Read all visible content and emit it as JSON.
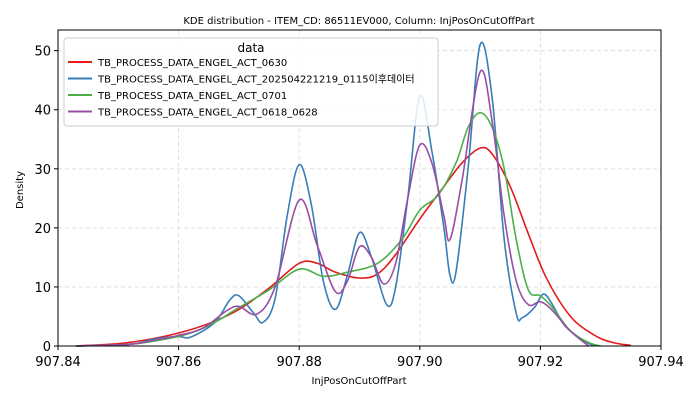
{
  "chart_data": {
    "type": "line",
    "title": "KDE distribution - ITEM_CD: 86511EV000, Column: InjPosOnCutOffPart",
    "xlabel": "InjPosOnCutOffPart",
    "ylabel": "Density",
    "xlim": [
      907.84,
      907.94
    ],
    "ylim": [
      0,
      53.5
    ],
    "x_ticks": [
      907.84,
      907.86,
      907.88,
      907.9,
      907.92,
      907.94
    ],
    "x_tick_labels": [
      "907.84",
      "907.86",
      "907.88",
      "907.90",
      "907.92",
      "907.94"
    ],
    "y_ticks": [
      0,
      10,
      20,
      30,
      40,
      50
    ],
    "y_tick_labels": [
      "0",
      "10",
      "20",
      "30",
      "40",
      "50"
    ],
    "grid": true,
    "legend": {
      "title": "data",
      "placement": "top-left"
    },
    "series": [
      {
        "name": "TB_PROCESS_DATA_ENGEL_ACT_0630",
        "color": "#e41a1c",
        "points": [
          [
            907.843,
            0.0
          ],
          [
            907.85,
            0.4
          ],
          [
            907.855,
            1.1
          ],
          [
            907.86,
            2.2
          ],
          [
            907.865,
            3.8
          ],
          [
            907.87,
            6.2
          ],
          [
            907.875,
            9.8
          ],
          [
            907.88,
            14.0
          ],
          [
            907.883,
            14.0
          ],
          [
            907.886,
            12.5
          ],
          [
            907.89,
            11.5
          ],
          [
            907.893,
            12.2
          ],
          [
            907.896,
            15.5
          ],
          [
            907.9,
            21.5
          ],
          [
            907.904,
            27.0
          ],
          [
            907.907,
            31.0
          ],
          [
            907.91,
            33.5
          ],
          [
            907.912,
            32.5
          ],
          [
            907.915,
            27.0
          ],
          [
            907.918,
            19.0
          ],
          [
            907.921,
            11.5
          ],
          [
            907.925,
            5.0
          ],
          [
            907.929,
            1.8
          ],
          [
            907.932,
            0.6
          ],
          [
            907.935,
            0.1
          ]
        ]
      },
      {
        "name": "TB_PROCESS_DATA_ENGEL_ACT_202504221219_0115이후데이터",
        "color": "#377eb8",
        "points": [
          [
            907.843,
            0.0
          ],
          [
            907.852,
            0.3
          ],
          [
            907.856,
            1.2
          ],
          [
            907.86,
            1.6
          ],
          [
            907.862,
            1.5
          ],
          [
            907.866,
            4.0
          ],
          [
            907.8685,
            7.8
          ],
          [
            907.87,
            8.5
          ],
          [
            907.8725,
            5.5
          ],
          [
            907.874,
            4.0
          ],
          [
            907.876,
            8.0
          ],
          [
            907.878,
            22.0
          ],
          [
            907.88,
            30.7
          ],
          [
            907.882,
            24.0
          ],
          [
            907.884,
            11.0
          ],
          [
            907.886,
            6.2
          ],
          [
            907.888,
            12.0
          ],
          [
            907.89,
            19.2
          ],
          [
            907.892,
            15.0
          ],
          [
            907.8945,
            7.0
          ],
          [
            907.896,
            10.0
          ],
          [
            907.898,
            25.0
          ],
          [
            907.9,
            42.3
          ],
          [
            907.902,
            33.0
          ],
          [
            907.904,
            20.0
          ],
          [
            907.905,
            12.0
          ],
          [
            907.906,
            12.5
          ],
          [
            907.908,
            30.0
          ],
          [
            907.91,
            51.0
          ],
          [
            907.912,
            42.0
          ],
          [
            907.914,
            18.0
          ],
          [
            907.916,
            5.5
          ],
          [
            907.917,
            4.8
          ],
          [
            907.919,
            6.5
          ],
          [
            907.9205,
            8.8
          ],
          [
            907.922,
            7.0
          ],
          [
            907.924,
            3.5
          ],
          [
            907.927,
            1.0
          ],
          [
            907.929,
            0.0
          ]
        ]
      },
      {
        "name": "TB_PROCESS_DATA_ENGEL_ACT_0701",
        "color": "#4daf4a",
        "points": [
          [
            907.843,
            0.0
          ],
          [
            907.852,
            0.3
          ],
          [
            907.858,
            1.2
          ],
          [
            907.862,
            2.2
          ],
          [
            907.866,
            4.0
          ],
          [
            907.87,
            6.5
          ],
          [
            907.875,
            9.5
          ],
          [
            907.88,
            13.0
          ],
          [
            907.884,
            11.8
          ],
          [
            907.888,
            12.5
          ],
          [
            907.893,
            14.0
          ],
          [
            907.897,
            18.0
          ],
          [
            907.9,
            23.0
          ],
          [
            907.903,
            25.5
          ],
          [
            907.906,
            31.0
          ],
          [
            907.908,
            37.0
          ],
          [
            907.91,
            39.5
          ],
          [
            907.912,
            37.0
          ],
          [
            907.914,
            30.0
          ],
          [
            907.916,
            18.0
          ],
          [
            907.918,
            9.5
          ],
          [
            907.92,
            8.5
          ],
          [
            907.922,
            6.5
          ],
          [
            907.925,
            2.5
          ],
          [
            907.928,
            0.6
          ],
          [
            907.93,
            0.0
          ]
        ]
      },
      {
        "name": "TB_PROCESS_DATA_ENGEL_ACT_0618_0628",
        "color": "#984ea3",
        "points": [
          [
            907.843,
            0.0
          ],
          [
            907.852,
            0.3
          ],
          [
            907.856,
            1.0
          ],
          [
            907.86,
            1.8
          ],
          [
            907.864,
            3.0
          ],
          [
            907.868,
            6.0
          ],
          [
            907.87,
            6.7
          ],
          [
            907.873,
            5.4
          ],
          [
            907.876,
            10.0
          ],
          [
            907.88,
            24.7
          ],
          [
            907.883,
            17.0
          ],
          [
            907.886,
            9.2
          ],
          [
            907.888,
            11.0
          ],
          [
            907.89,
            16.8
          ],
          [
            907.892,
            15.0
          ],
          [
            907.894,
            10.5
          ],
          [
            907.896,
            14.0
          ],
          [
            907.898,
            25.0
          ],
          [
            907.9,
            34.0
          ],
          [
            907.902,
            31.0
          ],
          [
            907.904,
            22.0
          ],
          [
            907.905,
            18.0
          ],
          [
            907.907,
            28.0
          ],
          [
            907.91,
            46.4
          ],
          [
            907.912,
            38.0
          ],
          [
            907.914,
            22.0
          ],
          [
            907.916,
            11.0
          ],
          [
            907.918,
            7.0
          ],
          [
            907.92,
            7.5
          ],
          [
            907.922,
            6.0
          ],
          [
            907.925,
            2.5
          ],
          [
            907.928,
            0.0
          ]
        ]
      }
    ]
  }
}
